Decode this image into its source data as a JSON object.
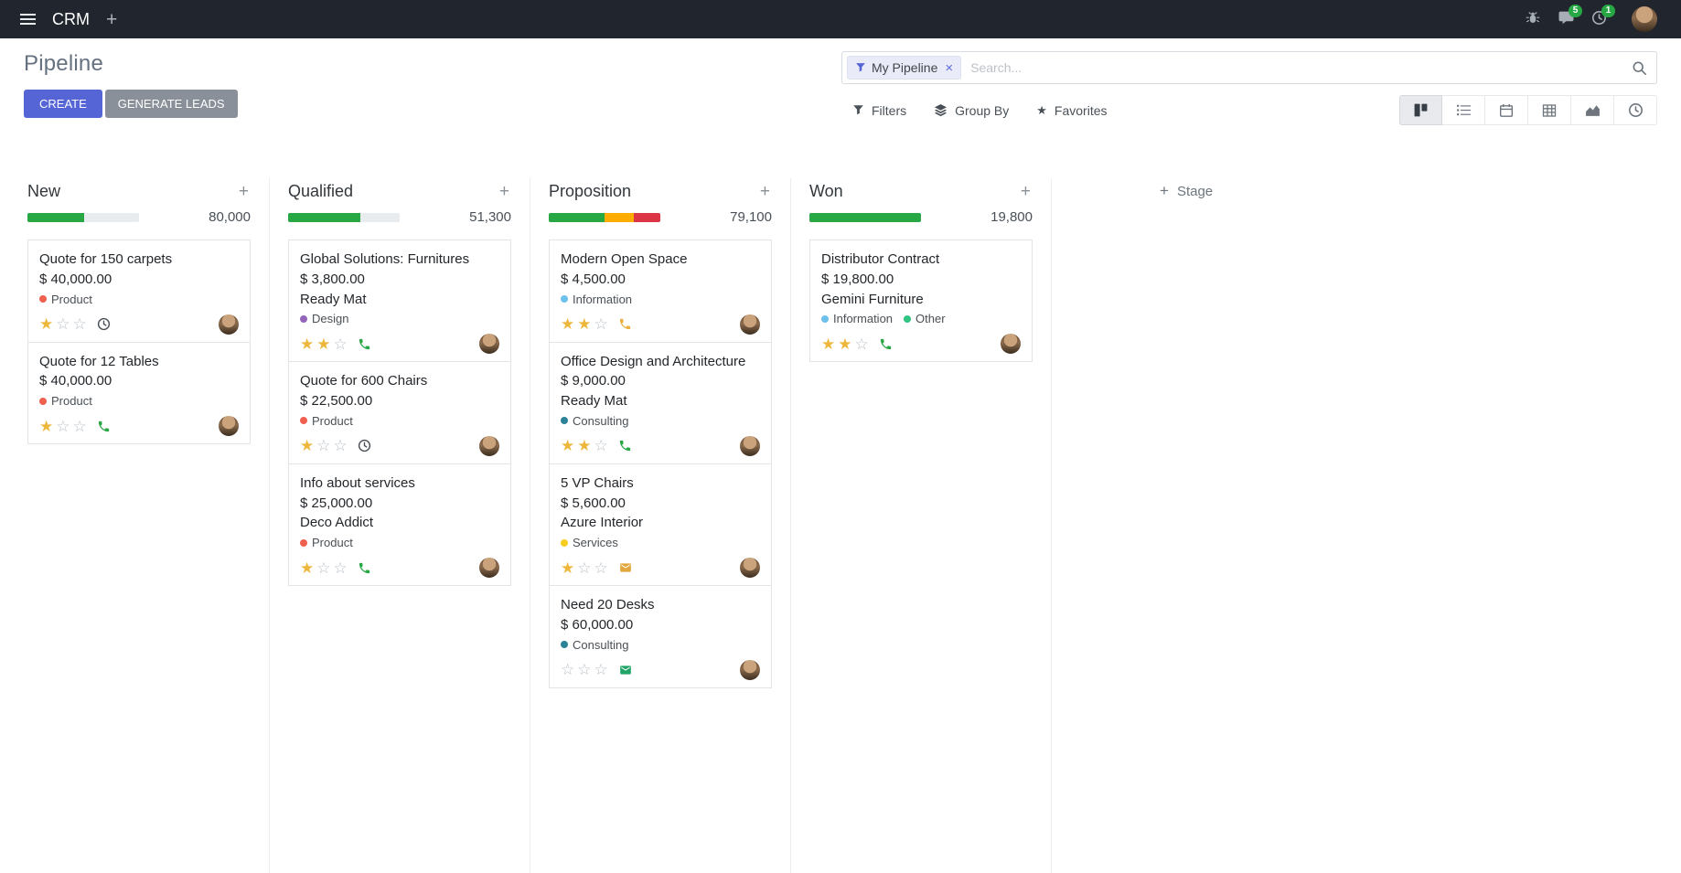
{
  "topbar": {
    "app_name": "CRM",
    "badges": {
      "messages": "5",
      "activities": "1"
    }
  },
  "control_panel": {
    "title": "Pipeline",
    "create_label": "CREATE",
    "generate_leads_label": "GENERATE LEADS",
    "search": {
      "facet": "My Pipeline",
      "placeholder": "Search..."
    },
    "filters_label": "Filters",
    "group_by_label": "Group By",
    "favorites_label": "Favorites"
  },
  "view_switcher": {
    "active": "kanban",
    "views": [
      "kanban",
      "list",
      "calendar",
      "pivot",
      "graph",
      "activity"
    ]
  },
  "colors": {
    "primary_button": "#5565d6",
    "secondary_button": "#8a909a",
    "progress_green": "#28a745",
    "progress_yellow": "#ffac00",
    "progress_red": "#dc3545",
    "star_gold": "#edb73c"
  },
  "kanban": {
    "add_stage_label": "Stage",
    "columns": [
      {
        "name": "New",
        "total": "80,000",
        "progress": [
          {
            "color": "#28a745",
            "pct": 51
          }
        ],
        "cards": [
          {
            "title": "Quote for 150 carpets",
            "amount": "$ 40,000.00",
            "partner": null,
            "tags": [
              {
                "label": "Product",
                "color": "#F06050"
              }
            ],
            "stars": 1,
            "activity_icon": "clock",
            "activity_color": "#495057"
          },
          {
            "title": "Quote for 12 Tables",
            "amount": "$ 40,000.00",
            "partner": null,
            "tags": [
              {
                "label": "Product",
                "color": "#F06050"
              }
            ],
            "stars": 1,
            "activity_icon": "phone",
            "activity_color": "#28a745"
          }
        ]
      },
      {
        "name": "Qualified",
        "total": "51,300",
        "progress": [
          {
            "color": "#28a745",
            "pct": 65
          }
        ],
        "cards": [
          {
            "title": "Global Solutions: Furnitures",
            "amount": "$ 3,800.00",
            "partner": "Ready Mat",
            "tags": [
              {
                "label": "Design",
                "color": "#9365B8"
              }
            ],
            "stars": 2,
            "activity_icon": "phone",
            "activity_color": "#28a745"
          },
          {
            "title": "Quote for 600 Chairs",
            "amount": "$ 22,500.00",
            "partner": null,
            "tags": [
              {
                "label": "Product",
                "color": "#F06050"
              }
            ],
            "stars": 1,
            "activity_icon": "clock",
            "activity_color": "#495057"
          },
          {
            "title": "Info about services",
            "amount": "$ 25,000.00",
            "partner": "Deco Addict",
            "tags": [
              {
                "label": "Product",
                "color": "#F06050"
              }
            ],
            "stars": 1,
            "activity_icon": "phone",
            "activity_color": "#28a745"
          }
        ]
      },
      {
        "name": "Proposition",
        "total": "79,100",
        "progress": [
          {
            "color": "#28a745",
            "pct": 50
          },
          {
            "color": "#ffac00",
            "pct": 26
          },
          {
            "color": "#dc3545",
            "pct": 24
          }
        ],
        "cards": [
          {
            "title": "Modern Open Space",
            "amount": "$ 4,500.00",
            "partner": null,
            "tags": [
              {
                "label": "Information",
                "color": "#6CC1ED"
              }
            ],
            "stars": 2,
            "activity_icon": "phone",
            "activity_color": "#eaaf3f"
          },
          {
            "title": "Office Design and Architecture",
            "amount": "$ 9,000.00",
            "partner": "Ready Mat",
            "tags": [
              {
                "label": "Consulting",
                "color": "#2C8397"
              }
            ],
            "stars": 2,
            "activity_icon": "phone",
            "activity_color": "#28a745"
          },
          {
            "title": "5 VP Chairs",
            "amount": "$ 5,600.00",
            "partner": "Azure Interior",
            "tags": [
              {
                "label": "Services",
                "color": "#F7CD1F"
              }
            ],
            "stars": 1,
            "activity_icon": "envelope",
            "activity_color": "#e2a63c"
          },
          {
            "title": "Need 20 Desks",
            "amount": "$ 60,000.00",
            "partner": null,
            "tags": [
              {
                "label": "Consulting",
                "color": "#2C8397"
              }
            ],
            "stars": 0,
            "activity_icon": "envelope",
            "activity_color": "#21a567"
          }
        ]
      },
      {
        "name": "Won",
        "total": "19,800",
        "progress": [
          {
            "color": "#28a745",
            "pct": 100
          }
        ],
        "cards": [
          {
            "title": "Distributor Contract",
            "amount": "$ 19,800.00",
            "partner": "Gemini Furniture",
            "tags": [
              {
                "label": "Information",
                "color": "#6CC1ED"
              },
              {
                "label": "Other",
                "color": "#30C381"
              }
            ],
            "stars": 2,
            "activity_icon": "phone",
            "activity_color": "#28a745"
          }
        ]
      }
    ]
  }
}
